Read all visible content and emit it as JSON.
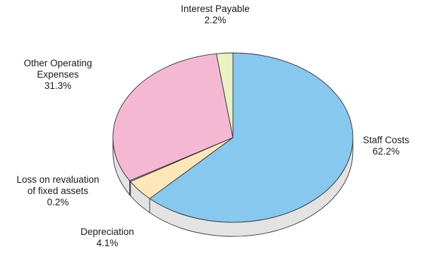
{
  "chart_data": {
    "type": "pie",
    "style": "3d",
    "slices": [
      {
        "label_lines": [
          "Staff Costs"
        ],
        "pct_label": "62.2%",
        "value": 62.2,
        "color": "#87c8ee",
        "side_color": "#e3e3e3"
      },
      {
        "label_lines": [
          "Depreciation"
        ],
        "pct_label": "4.1%",
        "value": 4.1,
        "color": "#fde7b8",
        "side_color": "#e3e3e3"
      },
      {
        "label_lines": [
          "Loss on revaluation",
          "of fixed assets"
        ],
        "pct_label": "0.2%",
        "value": 0.2,
        "color": "#bfbfbf",
        "side_color": "#d9d9d9"
      },
      {
        "label_lines": [
          "Other Operating",
          "Expenses"
        ],
        "pct_label": "31.3%",
        "value": 31.3,
        "color": "#f5b8d2",
        "side_color": "#e3e3e3"
      },
      {
        "label_lines": [
          "Interest Payable"
        ],
        "pct_label": "2.2%",
        "value": 2.2,
        "color": "#e8f2c4",
        "side_color": "#e3e3e3"
      }
    ]
  }
}
